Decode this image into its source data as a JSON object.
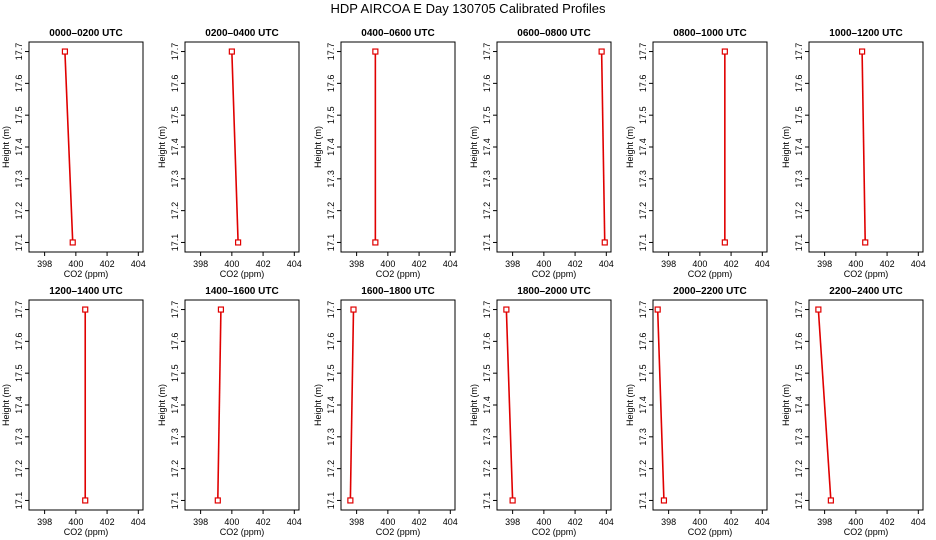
{
  "figure": {
    "title": "HDP AIRCOA E  Day 130705  Calibrated Profiles",
    "line_color": "#e00000",
    "marker_color": "#e00000"
  },
  "chart_data": [
    {
      "type": "line",
      "title": "0000–0200 UTC",
      "xlabel": "CO2 (ppm)",
      "ylabel": "Height (m)",
      "xlim": [
        397,
        404.3
      ],
      "ylim": [
        17.07,
        17.73
      ],
      "xticks": [
        "398",
        "400",
        "402",
        "404"
      ],
      "yticks": [
        "17.1",
        "17.2",
        "17.3",
        "17.4",
        "17.5",
        "17.6",
        "17.7"
      ],
      "grid": false,
      "series": [
        {
          "x": [
            399.3,
            399.8
          ],
          "y": [
            17.7,
            17.1
          ]
        }
      ]
    },
    {
      "type": "line",
      "title": "0200–0400 UTC",
      "xlabel": "CO2 (ppm)",
      "ylabel": "Height (m)",
      "xlim": [
        397,
        404.3
      ],
      "ylim": [
        17.07,
        17.73
      ],
      "xticks": [
        "398",
        "400",
        "402",
        "404"
      ],
      "yticks": [
        "17.1",
        "17.2",
        "17.3",
        "17.4",
        "17.5",
        "17.6",
        "17.7"
      ],
      "grid": false,
      "series": [
        {
          "x": [
            400.0,
            400.4
          ],
          "y": [
            17.7,
            17.1
          ]
        }
      ]
    },
    {
      "type": "line",
      "title": "0400–0600 UTC",
      "xlabel": "CO2 (ppm)",
      "ylabel": "Height (m)",
      "xlim": [
        397,
        404.3
      ],
      "ylim": [
        17.07,
        17.73
      ],
      "xticks": [
        "398",
        "400",
        "402",
        "404"
      ],
      "yticks": [
        "17.1",
        "17.2",
        "17.3",
        "17.4",
        "17.5",
        "17.6",
        "17.7"
      ],
      "grid": false,
      "series": [
        {
          "x": [
            399.2,
            399.2
          ],
          "y": [
            17.7,
            17.1
          ]
        }
      ]
    },
    {
      "type": "line",
      "title": "0600–0800 UTC",
      "xlabel": "CO2 (ppm)",
      "ylabel": "Height (m)",
      "xlim": [
        397,
        404.3
      ],
      "ylim": [
        17.07,
        17.73
      ],
      "xticks": [
        "398",
        "400",
        "402",
        "404"
      ],
      "yticks": [
        "17.1",
        "17.2",
        "17.3",
        "17.4",
        "17.5",
        "17.6",
        "17.7"
      ],
      "grid": false,
      "series": [
        {
          "x": [
            403.7,
            403.9
          ],
          "y": [
            17.7,
            17.1
          ]
        }
      ]
    },
    {
      "type": "line",
      "title": "0800–1000 UTC",
      "xlabel": "CO2 (ppm)",
      "ylabel": "Height (m)",
      "xlim": [
        397,
        404.3
      ],
      "ylim": [
        17.07,
        17.73
      ],
      "xticks": [
        "398",
        "400",
        "402",
        "404"
      ],
      "yticks": [
        "17.1",
        "17.2",
        "17.3",
        "17.4",
        "17.5",
        "17.6",
        "17.7"
      ],
      "grid": false,
      "series": [
        {
          "x": [
            401.6,
            401.6
          ],
          "y": [
            17.7,
            17.1
          ]
        }
      ]
    },
    {
      "type": "line",
      "title": "1000–1200 UTC",
      "xlabel": "CO2 (ppm)",
      "ylabel": "Height (m)",
      "xlim": [
        397,
        404.3
      ],
      "ylim": [
        17.07,
        17.73
      ],
      "xticks": [
        "398",
        "400",
        "402",
        "404"
      ],
      "yticks": [
        "17.1",
        "17.2",
        "17.3",
        "17.4",
        "17.5",
        "17.6",
        "17.7"
      ],
      "grid": false,
      "series": [
        {
          "x": [
            400.4,
            400.6
          ],
          "y": [
            17.7,
            17.1
          ]
        }
      ]
    },
    {
      "type": "line",
      "title": "1200–1400 UTC",
      "xlabel": "CO2 (ppm)",
      "ylabel": "Height (m)",
      "xlim": [
        397,
        404.3
      ],
      "ylim": [
        17.07,
        17.73
      ],
      "xticks": [
        "398",
        "400",
        "402",
        "404"
      ],
      "yticks": [
        "17.1",
        "17.2",
        "17.3",
        "17.4",
        "17.5",
        "17.6",
        "17.7"
      ],
      "grid": false,
      "series": [
        {
          "x": [
            400.6,
            400.6
          ],
          "y": [
            17.7,
            17.1
          ]
        }
      ]
    },
    {
      "type": "line",
      "title": "1400–1600 UTC",
      "xlabel": "CO2 (ppm)",
      "ylabel": "Height (m)",
      "xlim": [
        397,
        404.3
      ],
      "ylim": [
        17.07,
        17.73
      ],
      "xticks": [
        "398",
        "400",
        "402",
        "404"
      ],
      "yticks": [
        "17.1",
        "17.2",
        "17.3",
        "17.4",
        "17.5",
        "17.6",
        "17.7"
      ],
      "grid": false,
      "series": [
        {
          "x": [
            399.3,
            399.1
          ],
          "y": [
            17.7,
            17.1
          ]
        }
      ]
    },
    {
      "type": "line",
      "title": "1600–1800 UTC",
      "xlabel": "CO2 (ppm)",
      "ylabel": "Height (m)",
      "xlim": [
        397,
        404.3
      ],
      "ylim": [
        17.07,
        17.73
      ],
      "xticks": [
        "398",
        "400",
        "402",
        "404"
      ],
      "yticks": [
        "17.1",
        "17.2",
        "17.3",
        "17.4",
        "17.5",
        "17.6",
        "17.7"
      ],
      "grid": false,
      "series": [
        {
          "x": [
            397.8,
            397.6
          ],
          "y": [
            17.7,
            17.1
          ]
        }
      ]
    },
    {
      "type": "line",
      "title": "1800–2000 UTC",
      "xlabel": "CO2 (ppm)",
      "ylabel": "Height (m)",
      "xlim": [
        397,
        404.3
      ],
      "ylim": [
        17.07,
        17.73
      ],
      "xticks": [
        "398",
        "400",
        "402",
        "404"
      ],
      "yticks": [
        "17.1",
        "17.2",
        "17.3",
        "17.4",
        "17.5",
        "17.6",
        "17.7"
      ],
      "grid": false,
      "series": [
        {
          "x": [
            397.6,
            398.0
          ],
          "y": [
            17.7,
            17.1
          ]
        }
      ]
    },
    {
      "type": "line",
      "title": "2000–2200 UTC",
      "xlabel": "CO2 (ppm)",
      "ylabel": "Height (m)",
      "xlim": [
        397,
        404.3
      ],
      "ylim": [
        17.07,
        17.73
      ],
      "xticks": [
        "398",
        "400",
        "402",
        "404"
      ],
      "yticks": [
        "17.1",
        "17.2",
        "17.3",
        "17.4",
        "17.5",
        "17.6",
        "17.7"
      ],
      "grid": false,
      "series": [
        {
          "x": [
            397.3,
            397.7
          ],
          "y": [
            17.7,
            17.1
          ]
        }
      ]
    },
    {
      "type": "line",
      "title": "2200–2400 UTC",
      "xlabel": "CO2 (ppm)",
      "ylabel": "Height (m)",
      "xlim": [
        397,
        404.3
      ],
      "ylim": [
        17.07,
        17.73
      ],
      "xticks": [
        "398",
        "400",
        "402",
        "404"
      ],
      "yticks": [
        "17.1",
        "17.2",
        "17.3",
        "17.4",
        "17.5",
        "17.6",
        "17.7"
      ],
      "grid": false,
      "series": [
        {
          "x": [
            397.6,
            398.4
          ],
          "y": [
            17.7,
            17.1
          ]
        }
      ]
    }
  ]
}
